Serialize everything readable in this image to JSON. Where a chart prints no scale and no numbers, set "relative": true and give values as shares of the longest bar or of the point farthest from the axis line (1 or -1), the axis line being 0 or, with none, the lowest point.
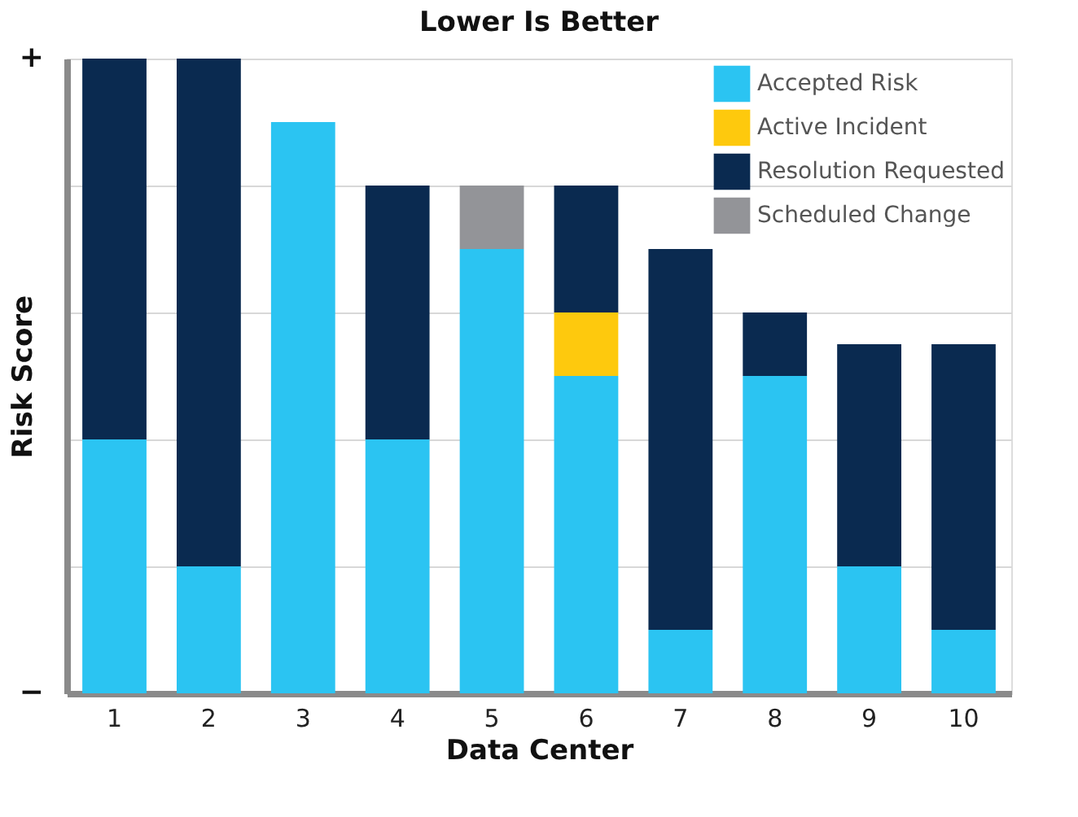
{
  "chart_data": {
    "type": "bar",
    "title": "Lower Is Better",
    "xlabel": "Data Center",
    "ylabel": "Risk Score",
    "relative": true,
    "stacked": true,
    "grid": "y",
    "legend": "top right",
    "annotations": [
      "+",
      "−"
    ],
    "categories": [
      "1",
      "2",
      "3",
      "4",
      "5",
      "6",
      "7",
      "8",
      "9",
      "10"
    ],
    "series": [
      {
        "name": "Accepted Risk",
        "color": "#2bc4f2",
        "values": [
          0.4,
          0.2,
          0.9,
          0.4,
          0.7,
          0.5,
          0.1,
          0.5,
          0.2,
          0.1
        ]
      },
      {
        "name": "Active Incident",
        "color": "#fec90d",
        "values": [
          0,
          0,
          0,
          0,
          0,
          0.1,
          0,
          0,
          0,
          0
        ]
      },
      {
        "name": "Resolution Requested",
        "color": "#0a2a50",
        "values": [
          0.6,
          0.8,
          0,
          0.4,
          0,
          0.2,
          0.6,
          0.1,
          0.35,
          0.45
        ]
      },
      {
        "name": "Scheduled Change",
        "color": "#939498",
        "values": [
          0,
          0,
          0,
          0,
          0.1,
          0,
          0,
          0,
          0,
          0
        ]
      }
    ]
  }
}
